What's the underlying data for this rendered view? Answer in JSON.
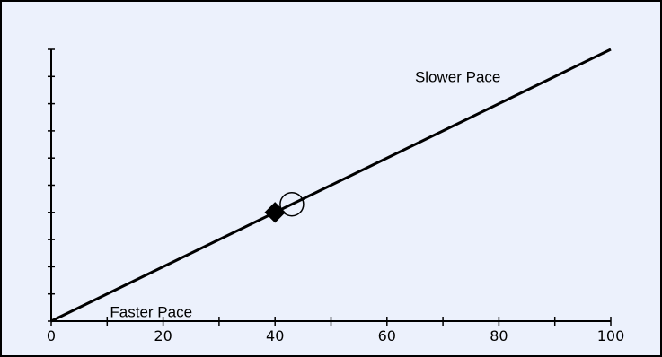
{
  "chart_data": {
    "type": "line",
    "title": "",
    "xlabel": "",
    "ylabel": "",
    "xlim": [
      0,
      100
    ],
    "ylim": [
      0,
      10
    ],
    "x_ticks": [
      0,
      10,
      20,
      30,
      40,
      50,
      60,
      70,
      80,
      90,
      100
    ],
    "x_tick_labels": [
      "0",
      "20",
      "40",
      "60",
      "80",
      "100"
    ],
    "x_tick_label_values": [
      0,
      20,
      40,
      60,
      80,
      100
    ],
    "y_ticks": [
      0,
      1,
      2,
      3,
      4,
      5,
      6,
      7,
      8,
      9,
      10
    ],
    "y_tick_labels_shown": false,
    "grid": false,
    "legend": "none",
    "series": [
      {
        "x": [
          0,
          100
        ],
        "y": [
          0,
          10
        ]
      }
    ],
    "markers": [
      {
        "shape": "filled-diamond",
        "x": 40,
        "y": 4.0
      },
      {
        "shape": "open-circle",
        "x": 43,
        "y": 4.3
      }
    ],
    "annotations": [
      {
        "text": "Slower Pace",
        "x": 65,
        "y": 8.8
      },
      {
        "text": "Faster Pace",
        "x": 10.5,
        "y": 0.15
      }
    ],
    "colors": {
      "background": "#ecf1fc",
      "line": "#000000",
      "frame": "#000000"
    }
  }
}
